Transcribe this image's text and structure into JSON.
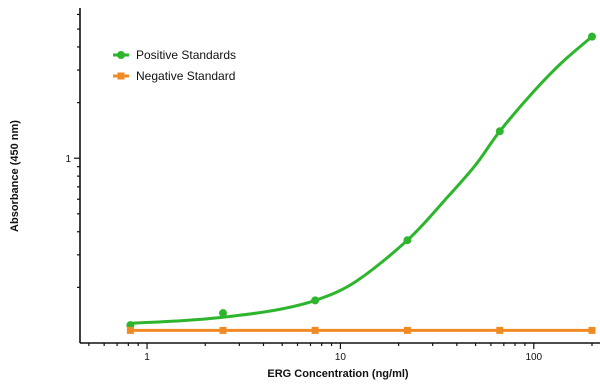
{
  "chart_data": {
    "type": "scatter",
    "title": "",
    "xlabel": "ERG Concentration (ng/ml)",
    "ylabel": "Absorbance (450 nm)",
    "x_scale": "log",
    "y_scale": "log",
    "xlim": [
      0.45,
      220
    ],
    "ylim": [
      0.1,
      6.5
    ],
    "x_ticks": [
      {
        "value": 1,
        "label": "1"
      },
      {
        "value": 10,
        "label": "10"
      },
      {
        "value": 100,
        "label": "100"
      }
    ],
    "x_minor_ticks": [
      0.5,
      0.6,
      0.7,
      0.8,
      0.9,
      2,
      3,
      4,
      5,
      6,
      7,
      8,
      9,
      20,
      30,
      40,
      50,
      60,
      70,
      80,
      90,
      200
    ],
    "y_ticks": [
      {
        "value": 1,
        "label": "1"
      }
    ],
    "y_minor_ticks": [
      0.2,
      0.3,
      0.4,
      0.5,
      0.6,
      0.7,
      0.8,
      0.9,
      2,
      3,
      4,
      5,
      6
    ],
    "grid": false,
    "legend": {
      "position": "top-left"
    },
    "series": [
      {
        "name": "Positive Standards",
        "color": "#2db52d",
        "marker": "circle",
        "fit_curve": true,
        "points": [
          {
            "x": 0.82,
            "y": 0.125
          },
          {
            "x": 2.47,
            "y": 0.145
          },
          {
            "x": 7.4,
            "y": 0.17
          },
          {
            "x": 22.2,
            "y": 0.36
          },
          {
            "x": 66.7,
            "y": 1.4
          },
          {
            "x": 200,
            "y": 4.55
          }
        ],
        "curve": [
          {
            "x": 0.82,
            "y": 0.128
          },
          {
            "x": 1.5,
            "y": 0.132
          },
          {
            "x": 2.47,
            "y": 0.138
          },
          {
            "x": 4.5,
            "y": 0.15
          },
          {
            "x": 7.4,
            "y": 0.17
          },
          {
            "x": 12,
            "y": 0.215
          },
          {
            "x": 22.2,
            "y": 0.36
          },
          {
            "x": 35,
            "y": 0.6
          },
          {
            "x": 50,
            "y": 0.92
          },
          {
            "x": 66.7,
            "y": 1.4
          },
          {
            "x": 100,
            "y": 2.3
          },
          {
            "x": 140,
            "y": 3.3
          },
          {
            "x": 200,
            "y": 4.55
          }
        ]
      },
      {
        "name": "Negative Standard",
        "color": "#f08a24",
        "marker": "square",
        "fit_curve": false,
        "points": [
          {
            "x": 0.82,
            "y": 0.117
          },
          {
            "x": 2.47,
            "y": 0.117
          },
          {
            "x": 7.4,
            "y": 0.117
          },
          {
            "x": 22.2,
            "y": 0.117
          },
          {
            "x": 66.7,
            "y": 0.117
          },
          {
            "x": 200,
            "y": 0.117
          }
        ]
      }
    ]
  }
}
